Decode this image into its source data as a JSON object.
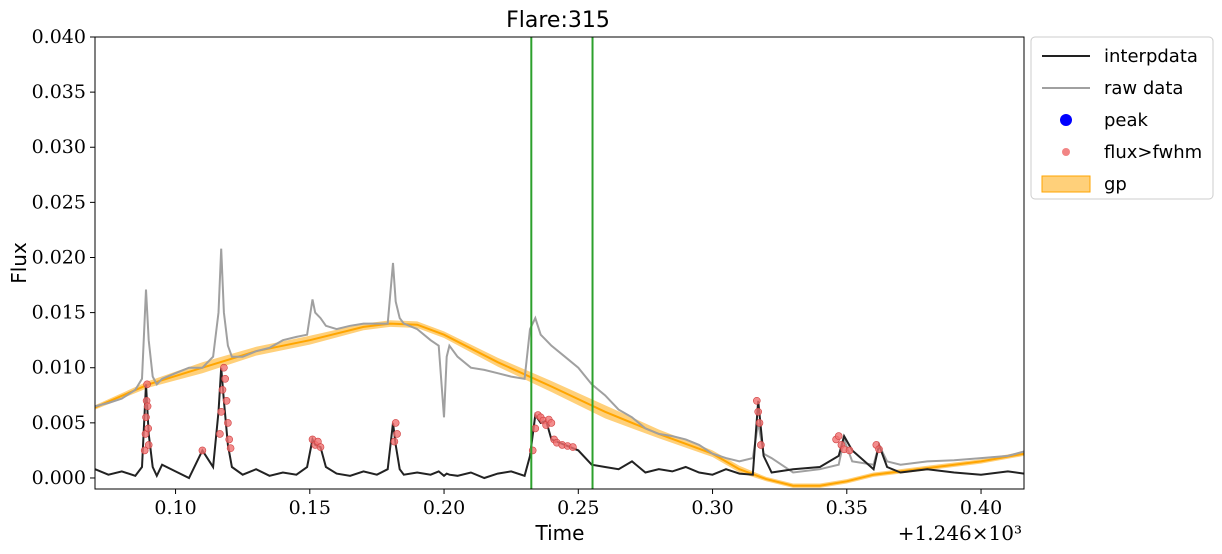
{
  "chart_data": {
    "type": "line",
    "title": "Flare:315",
    "xlabel": "Time",
    "ylabel": "Flux",
    "x_offset_label": "+1.246×10³",
    "xlim": [
      0.07,
      0.416
    ],
    "ylim": [
      -0.001,
      0.04
    ],
    "x_ticks": [
      0.1,
      0.15,
      0.2,
      0.25,
      0.3,
      0.35,
      0.4
    ],
    "x_tick_labels": [
      "0.10",
      "0.15",
      "0.20",
      "0.25",
      "0.30",
      "0.35",
      "0.40"
    ],
    "y_ticks": [
      0.0,
      0.005,
      0.01,
      0.015,
      0.02,
      0.025,
      0.03,
      0.035,
      0.04
    ],
    "y_tick_labels": [
      "0.000",
      "0.005",
      "0.010",
      "0.015",
      "0.020",
      "0.025",
      "0.030",
      "0.035",
      "0.040"
    ],
    "grid": false,
    "legend_position": "outside-top-right",
    "legend": [
      {
        "label": "interpdata",
        "kind": "line",
        "color": "#222222"
      },
      {
        "label": "raw data",
        "kind": "line",
        "color": "#a0a0a0"
      },
      {
        "label": "peak",
        "kind": "dot",
        "color": "#0000ff"
      },
      {
        "label": "flux>fwhm",
        "kind": "dot",
        "color": "#f07070"
      },
      {
        "label": "gp",
        "kind": "band",
        "color": "#ffc04d"
      }
    ],
    "vlines": [
      {
        "x": 0.2325,
        "color": "#2ca02c"
      },
      {
        "x": 0.2553,
        "color": "#2ca02c"
      }
    ],
    "series": [
      {
        "name": "raw data",
        "color": "#a0a0a0",
        "x": [
          0.07,
          0.075,
          0.08,
          0.085,
          0.0875,
          0.089,
          0.09,
          0.0915,
          0.093,
          0.095,
          0.1,
          0.105,
          0.11,
          0.114,
          0.116,
          0.117,
          0.118,
          0.1195,
          0.121,
          0.125,
          0.13,
          0.135,
          0.14,
          0.145,
          0.149,
          0.151,
          0.152,
          0.154,
          0.156,
          0.16,
          0.165,
          0.17,
          0.175,
          0.179,
          0.181,
          0.182,
          0.1835,
          0.185,
          0.19,
          0.195,
          0.198,
          0.2,
          0.201,
          0.202,
          0.205,
          0.21,
          0.215,
          0.22,
          0.225,
          0.23,
          0.232,
          0.234,
          0.236,
          0.238,
          0.24,
          0.245,
          0.25,
          0.255,
          0.26,
          0.265,
          0.27,
          0.275,
          0.28,
          0.285,
          0.29,
          0.295,
          0.3,
          0.305,
          0.31,
          0.315,
          0.317,
          0.319,
          0.322,
          0.33,
          0.34,
          0.347,
          0.349,
          0.352,
          0.36,
          0.362,
          0.365,
          0.37,
          0.38,
          0.39,
          0.4,
          0.41,
          0.416
        ],
        "y": [
          0.0065,
          0.0068,
          0.0072,
          0.008,
          0.009,
          0.0171,
          0.0125,
          0.0092,
          0.0085,
          0.009,
          0.0095,
          0.01,
          0.01,
          0.011,
          0.015,
          0.0208,
          0.015,
          0.012,
          0.011,
          0.011,
          0.0115,
          0.0118,
          0.0125,
          0.0128,
          0.013,
          0.0162,
          0.015,
          0.0145,
          0.0138,
          0.0135,
          0.0138,
          0.014,
          0.014,
          0.014,
          0.0195,
          0.016,
          0.0145,
          0.014,
          0.0135,
          0.0125,
          0.012,
          0.0055,
          0.011,
          0.012,
          0.011,
          0.01,
          0.0098,
          0.0095,
          0.0092,
          0.009,
          0.0135,
          0.0145,
          0.013,
          0.0125,
          0.012,
          0.011,
          0.01,
          0.0085,
          0.0075,
          0.0062,
          0.0055,
          0.0045,
          0.004,
          0.0038,
          0.0035,
          0.003,
          0.0022,
          0.0018,
          0.0015,
          0.0018,
          0.005,
          0.0022,
          0.0018,
          0.0005,
          0.0008,
          0.0012,
          0.0035,
          0.0015,
          0.0012,
          0.003,
          0.0015,
          0.0012,
          0.0015,
          0.0016,
          0.0018,
          0.002,
          0.0024
        ]
      },
      {
        "name": "interpdata",
        "color": "#222222",
        "x": [
          0.07,
          0.075,
          0.08,
          0.085,
          0.0875,
          0.089,
          0.09,
          0.0915,
          0.093,
          0.095,
          0.1,
          0.105,
          0.11,
          0.114,
          0.116,
          0.117,
          0.118,
          0.1195,
          0.121,
          0.125,
          0.13,
          0.135,
          0.14,
          0.145,
          0.149,
          0.151,
          0.152,
          0.154,
          0.156,
          0.16,
          0.165,
          0.17,
          0.175,
          0.179,
          0.181,
          0.182,
          0.1835,
          0.185,
          0.19,
          0.195,
          0.198,
          0.2,
          0.201,
          0.202,
          0.205,
          0.21,
          0.215,
          0.22,
          0.225,
          0.23,
          0.232,
          0.234,
          0.236,
          0.238,
          0.24,
          0.245,
          0.25,
          0.255,
          0.26,
          0.265,
          0.27,
          0.275,
          0.28,
          0.285,
          0.29,
          0.295,
          0.3,
          0.305,
          0.31,
          0.315,
          0.317,
          0.319,
          0.322,
          0.33,
          0.34,
          0.347,
          0.349,
          0.352,
          0.36,
          0.362,
          0.365,
          0.37,
          0.38,
          0.39,
          0.4,
          0.41,
          0.416
        ],
        "y": [
          0.0008,
          0.0003,
          0.0006,
          0.0002,
          0.001,
          0.0085,
          0.004,
          0.001,
          0.0002,
          0.0012,
          0.0006,
          0.0,
          0.0025,
          0.001,
          0.006,
          0.01,
          0.007,
          0.003,
          0.001,
          0.0003,
          0.0008,
          0.0002,
          0.0005,
          0.0003,
          0.001,
          0.0035,
          0.003,
          0.0028,
          0.001,
          0.0004,
          0.0002,
          0.0006,
          0.0003,
          0.0008,
          0.005,
          0.003,
          0.0008,
          0.0003,
          0.0005,
          0.0003,
          0.0006,
          0.0002,
          0.0004,
          0.0003,
          0.0002,
          0.0005,
          0.0,
          0.0004,
          0.0006,
          0.0002,
          0.002,
          0.0057,
          0.005,
          0.0052,
          0.0035,
          0.003,
          0.0025,
          0.0012,
          0.001,
          0.0008,
          0.0015,
          0.0005,
          0.0008,
          0.0006,
          0.001,
          0.0005,
          0.0003,
          0.0008,
          0.0004,
          0.0003,
          0.007,
          0.002,
          0.0005,
          0.0008,
          0.001,
          0.002,
          0.0038,
          0.0025,
          0.0008,
          0.003,
          0.001,
          0.0005,
          0.0008,
          0.0005,
          0.0003,
          0.0006,
          0.0004
        ]
      },
      {
        "name": "gp",
        "color": "#ffa500",
        "x": [
          0.07,
          0.09,
          0.11,
          0.13,
          0.15,
          0.17,
          0.18,
          0.19,
          0.2,
          0.22,
          0.24,
          0.26,
          0.28,
          0.3,
          0.31,
          0.32,
          0.33,
          0.34,
          0.35,
          0.36,
          0.38,
          0.4,
          0.416
        ],
        "y": [
          0.0064,
          0.0085,
          0.01,
          0.0115,
          0.0125,
          0.0137,
          0.014,
          0.0139,
          0.013,
          0.0105,
          0.0083,
          0.006,
          0.004,
          0.0022,
          0.0008,
          -0.0001,
          -0.0007,
          -0.0007,
          -0.0003,
          0.0003,
          0.0009,
          0.0015,
          0.0022
        ],
        "band_halfwidth": [
          0.0002,
          0.0003,
          0.0005,
          0.0004,
          0.0004,
          0.0003,
          0.0003,
          0.0003,
          0.0003,
          0.0004,
          0.0005,
          0.0006,
          0.0004,
          0.0003,
          0.0003,
          0.0002,
          0.0002,
          0.0002,
          0.0002,
          0.0002,
          0.0002,
          0.0002,
          0.0002
        ]
      },
      {
        "name": "flux>fwhm",
        "color": "#f07070",
        "x": [
          0.0885,
          0.0888,
          0.089,
          0.0892,
          0.0894,
          0.0896,
          0.0898,
          0.09,
          0.11,
          0.1165,
          0.117,
          0.1175,
          0.118,
          0.1185,
          0.119,
          0.1195,
          0.12,
          0.1205,
          0.151,
          0.152,
          0.153,
          0.154,
          0.1815,
          0.182,
          0.1825,
          0.233,
          0.234,
          0.235,
          0.236,
          0.237,
          0.238,
          0.239,
          0.24,
          0.241,
          0.242,
          0.244,
          0.246,
          0.248,
          0.3165,
          0.317,
          0.3175,
          0.318,
          0.346,
          0.347,
          0.348,
          0.349,
          0.351,
          0.361,
          0.362
        ],
        "y": [
          0.0025,
          0.004,
          0.0055,
          0.007,
          0.0085,
          0.0065,
          0.0045,
          0.003,
          0.0025,
          0.004,
          0.006,
          0.008,
          0.01,
          0.009,
          0.007,
          0.005,
          0.0035,
          0.0027,
          0.0035,
          0.003,
          0.0033,
          0.0028,
          0.0033,
          0.005,
          0.004,
          0.0025,
          0.0045,
          0.0057,
          0.0055,
          0.0052,
          0.0048,
          0.0053,
          0.005,
          0.0035,
          0.0032,
          0.003,
          0.0029,
          0.0028,
          0.007,
          0.006,
          0.005,
          0.003,
          0.0035,
          0.0038,
          0.003,
          0.0026,
          0.0025,
          0.003,
          0.0026
        ]
      }
    ]
  }
}
